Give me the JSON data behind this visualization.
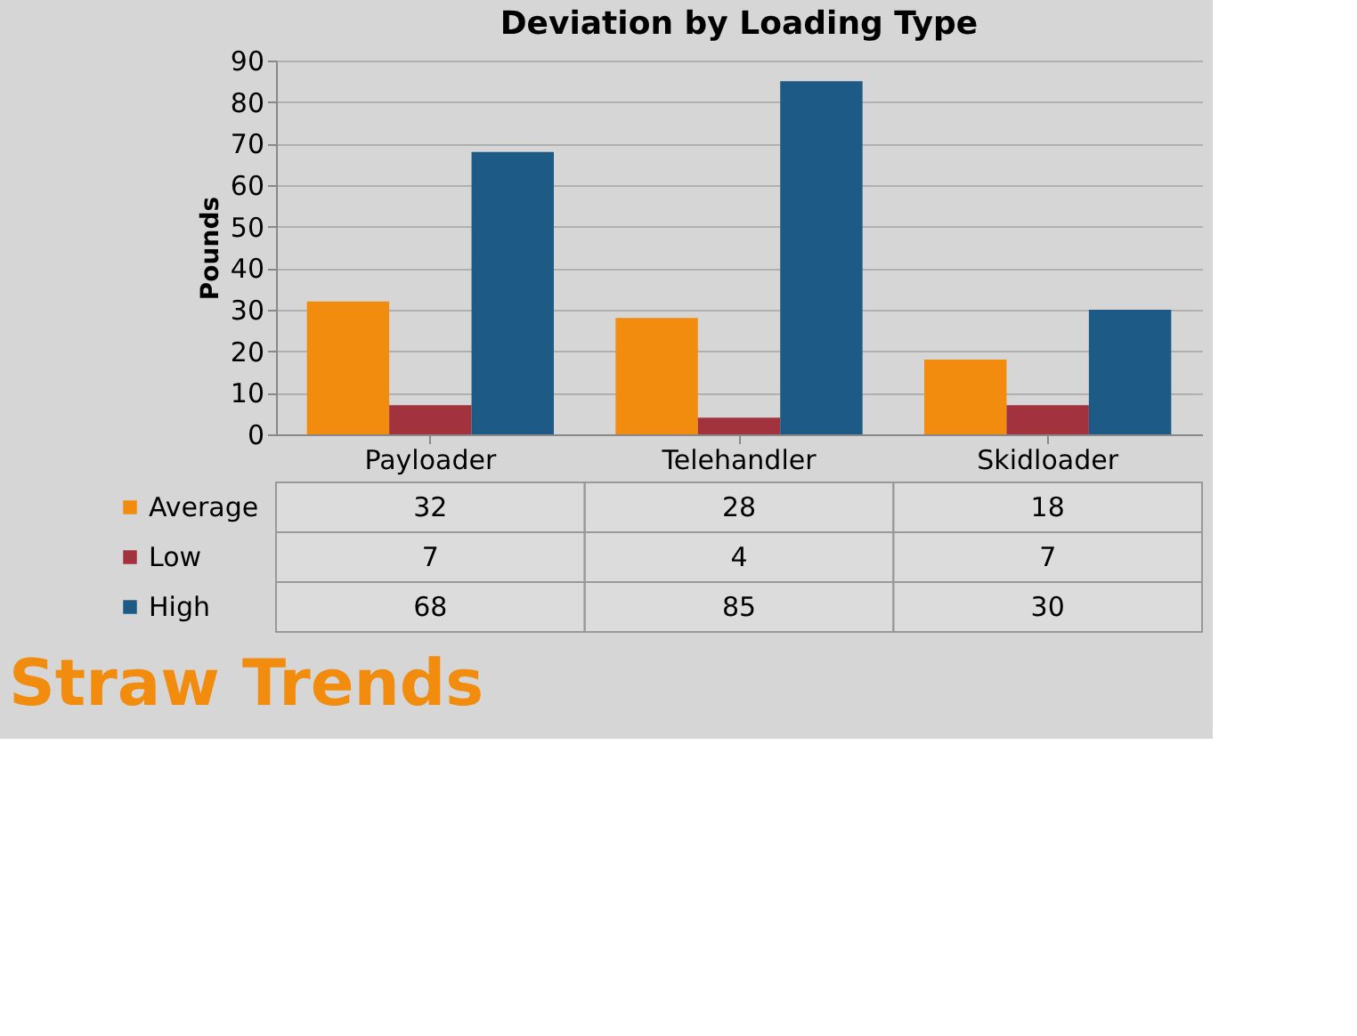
{
  "chart_data": {
    "type": "bar",
    "title": "Deviation by Loading Type",
    "ylabel": "Pounds",
    "categories": [
      "Payloader",
      "Telehandler",
      "Skidloader"
    ],
    "series": [
      {
        "name": "Average",
        "color": "#f28c0f",
        "values": [
          32,
          28,
          18
        ]
      },
      {
        "name": "Low",
        "color": "#a3323f",
        "values": [
          7,
          4,
          7
        ]
      },
      {
        "name": "High",
        "color": "#1d5a85",
        "values": [
          68,
          85,
          30
        ]
      }
    ],
    "ylim": [
      0,
      90
    ],
    "yticks": [
      0,
      10,
      20,
      30,
      40,
      50,
      60,
      70,
      80,
      90
    ],
    "grid": "y",
    "data_labels": true,
    "legend": "left",
    "annotations": [
      "Straw Trends"
    ]
  }
}
